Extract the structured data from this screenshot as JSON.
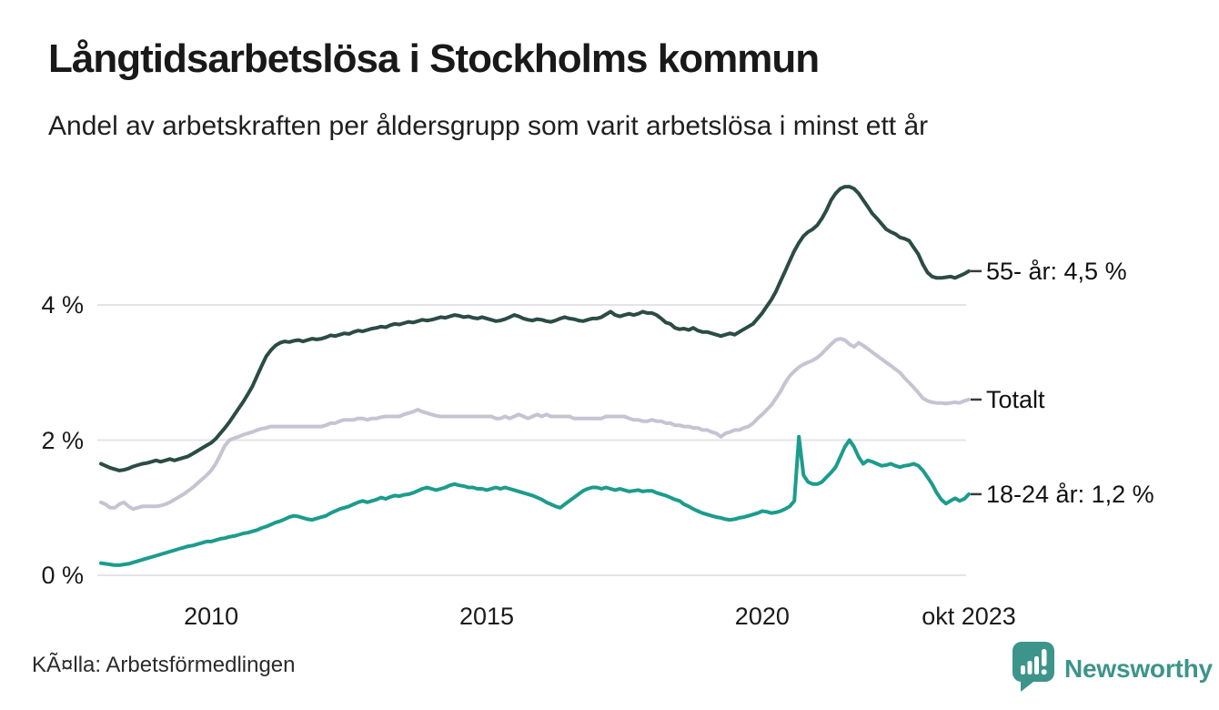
{
  "header": {
    "title": "Långtidsarbetslösa i Stockholms kommun",
    "subtitle": "Andel av arbetskraften per åldersgrupp som varit arbetslösa i minst ett år"
  },
  "footer": {
    "source": "KÃ¤lla: Arbetsförmedlingen",
    "brand": "Newsworthy",
    "brand_color": "#3d948b"
  },
  "chart_data": {
    "type": "line",
    "title": "Långtidsarbetslösa i Stockholms kommun",
    "subtitle": "Andel av arbetskraften per åldersgrupp som varit arbetslösa i minst ett år",
    "unit": "%",
    "frequency": "monthly",
    "period_start": "jan 2008",
    "period_end": "okt 2023",
    "grid": true,
    "legend_position": "right-end-labels",
    "x_axis": {
      "start_year": 2008.0,
      "end_year": 2023.75,
      "ticks": [
        {
          "label": "2010",
          "t": 2010.0
        },
        {
          "label": "2015",
          "t": 2015.0
        },
        {
          "label": "2020",
          "t": 2020.0
        },
        {
          "label": "okt 2023",
          "t": 2023.75
        }
      ]
    },
    "y_axis": {
      "ylim": [
        0,
        6
      ],
      "ticks": [
        {
          "label": "4 %",
          "value": 4
        },
        {
          "label": "2 %",
          "value": 2
        },
        {
          "label": "0 %",
          "value": 0
        }
      ]
    },
    "series": [
      {
        "name": "55- år",
        "end_label": "55- år: 4,5 %",
        "end_value": "4,5 %",
        "color": "#2b4c44",
        "values": [
          1.65,
          1.62,
          1.59,
          1.57,
          1.55,
          1.56,
          1.58,
          1.61,
          1.63,
          1.65,
          1.66,
          1.68,
          1.7,
          1.68,
          1.7,
          1.72,
          1.7,
          1.72,
          1.74,
          1.76,
          1.8,
          1.84,
          1.88,
          1.92,
          1.96,
          2.02,
          2.1,
          2.18,
          2.27,
          2.37,
          2.47,
          2.57,
          2.68,
          2.8,
          2.95,
          3.1,
          3.24,
          3.33,
          3.4,
          3.44,
          3.46,
          3.45,
          3.47,
          3.48,
          3.46,
          3.48,
          3.5,
          3.49,
          3.5,
          3.52,
          3.55,
          3.54,
          3.56,
          3.58,
          3.57,
          3.6,
          3.62,
          3.61,
          3.63,
          3.65,
          3.66,
          3.68,
          3.67,
          3.7,
          3.72,
          3.71,
          3.73,
          3.75,
          3.74,
          3.76,
          3.78,
          3.77,
          3.78,
          3.8,
          3.82,
          3.81,
          3.83,
          3.85,
          3.84,
          3.82,
          3.83,
          3.81,
          3.8,
          3.82,
          3.8,
          3.78,
          3.76,
          3.77,
          3.79,
          3.82,
          3.85,
          3.83,
          3.8,
          3.78,
          3.77,
          3.79,
          3.78,
          3.76,
          3.75,
          3.77,
          3.8,
          3.82,
          3.8,
          3.79,
          3.77,
          3.76,
          3.78,
          3.8,
          3.8,
          3.82,
          3.86,
          3.9,
          3.85,
          3.83,
          3.85,
          3.87,
          3.85,
          3.87,
          3.9,
          3.88,
          3.88,
          3.85,
          3.8,
          3.74,
          3.72,
          3.66,
          3.64,
          3.65,
          3.63,
          3.66,
          3.62,
          3.6,
          3.6,
          3.58,
          3.56,
          3.54,
          3.56,
          3.58,
          3.56,
          3.6,
          3.64,
          3.68,
          3.72,
          3.8,
          3.88,
          3.98,
          4.08,
          4.2,
          4.35,
          4.5,
          4.65,
          4.8,
          4.92,
          5.02,
          5.08,
          5.12,
          5.18,
          5.28,
          5.4,
          5.55,
          5.65,
          5.72,
          5.75,
          5.75,
          5.72,
          5.65,
          5.55,
          5.45,
          5.35,
          5.28,
          5.2,
          5.12,
          5.08,
          5.05,
          5.0,
          4.98,
          4.95,
          4.85,
          4.75,
          4.6,
          4.48,
          4.42,
          4.4,
          4.4,
          4.41,
          4.42,
          4.4,
          4.43,
          4.46,
          4.5
        ]
      },
      {
        "name": "Totalt",
        "end_label": "Totalt",
        "end_value": "2,6 %",
        "color": "#c6c3d2",
        "values": [
          1.08,
          1.05,
          1.0,
          1.0,
          1.05,
          1.08,
          1.02,
          0.98,
          1.0,
          1.02,
          1.02,
          1.02,
          1.02,
          1.03,
          1.05,
          1.08,
          1.12,
          1.16,
          1.2,
          1.25,
          1.3,
          1.36,
          1.42,
          1.48,
          1.55,
          1.65,
          1.78,
          1.92,
          2.0,
          2.03,
          2.05,
          2.08,
          2.1,
          2.12,
          2.15,
          2.17,
          2.18,
          2.2,
          2.2,
          2.2,
          2.2,
          2.2,
          2.2,
          2.2,
          2.2,
          2.2,
          2.2,
          2.2,
          2.2,
          2.22,
          2.25,
          2.25,
          2.28,
          2.3,
          2.3,
          2.3,
          2.32,
          2.32,
          2.3,
          2.32,
          2.32,
          2.34,
          2.35,
          2.35,
          2.35,
          2.35,
          2.38,
          2.4,
          2.42,
          2.45,
          2.42,
          2.4,
          2.38,
          2.36,
          2.35,
          2.35,
          2.35,
          2.35,
          2.35,
          2.35,
          2.35,
          2.35,
          2.35,
          2.35,
          2.35,
          2.35,
          2.32,
          2.32,
          2.35,
          2.32,
          2.35,
          2.38,
          2.35,
          2.32,
          2.35,
          2.38,
          2.35,
          2.38,
          2.35,
          2.35,
          2.35,
          2.35,
          2.35,
          2.32,
          2.32,
          2.32,
          2.32,
          2.32,
          2.32,
          2.32,
          2.35,
          2.35,
          2.35,
          2.35,
          2.35,
          2.32,
          2.3,
          2.3,
          2.28,
          2.28,
          2.3,
          2.28,
          2.28,
          2.25,
          2.25,
          2.22,
          2.22,
          2.2,
          2.2,
          2.18,
          2.18,
          2.15,
          2.15,
          2.12,
          2.1,
          2.05,
          2.1,
          2.12,
          2.15,
          2.15,
          2.18,
          2.2,
          2.25,
          2.32,
          2.38,
          2.45,
          2.52,
          2.62,
          2.72,
          2.85,
          2.95,
          3.02,
          3.08,
          3.12,
          3.15,
          3.18,
          3.22,
          3.28,
          3.35,
          3.42,
          3.48,
          3.5,
          3.48,
          3.42,
          3.38,
          3.44,
          3.4,
          3.35,
          3.3,
          3.25,
          3.2,
          3.15,
          3.1,
          3.05,
          3.0,
          2.92,
          2.85,
          2.78,
          2.7,
          2.62,
          2.58,
          2.56,
          2.55,
          2.55,
          2.54,
          2.55,
          2.56,
          2.55,
          2.58,
          2.6
        ]
      },
      {
        "name": "18-24 år",
        "end_label": "18-24 år: 1,2 %",
        "end_value": "1,2 %",
        "color": "#1c9c8c",
        "values": [
          0.18,
          0.17,
          0.16,
          0.15,
          0.15,
          0.16,
          0.17,
          0.19,
          0.21,
          0.23,
          0.25,
          0.27,
          0.29,
          0.31,
          0.33,
          0.35,
          0.37,
          0.39,
          0.41,
          0.43,
          0.44,
          0.46,
          0.48,
          0.5,
          0.5,
          0.52,
          0.54,
          0.55,
          0.57,
          0.58,
          0.6,
          0.62,
          0.63,
          0.65,
          0.67,
          0.7,
          0.72,
          0.75,
          0.78,
          0.8,
          0.83,
          0.86,
          0.88,
          0.87,
          0.85,
          0.83,
          0.82,
          0.84,
          0.86,
          0.88,
          0.92,
          0.95,
          0.98,
          1.0,
          1.02,
          1.05,
          1.08,
          1.1,
          1.08,
          1.1,
          1.12,
          1.15,
          1.13,
          1.16,
          1.18,
          1.17,
          1.19,
          1.2,
          1.22,
          1.25,
          1.28,
          1.3,
          1.28,
          1.26,
          1.28,
          1.3,
          1.33,
          1.35,
          1.33,
          1.32,
          1.3,
          1.3,
          1.28,
          1.28,
          1.26,
          1.28,
          1.3,
          1.28,
          1.3,
          1.28,
          1.26,
          1.24,
          1.22,
          1.2,
          1.18,
          1.15,
          1.12,
          1.08,
          1.05,
          1.02,
          1.0,
          1.05,
          1.1,
          1.15,
          1.2,
          1.25,
          1.28,
          1.3,
          1.3,
          1.28,
          1.3,
          1.28,
          1.26,
          1.28,
          1.26,
          1.24,
          1.25,
          1.26,
          1.24,
          1.25,
          1.25,
          1.22,
          1.2,
          1.18,
          1.15,
          1.12,
          1.1,
          1.05,
          1.02,
          0.98,
          0.95,
          0.92,
          0.9,
          0.88,
          0.86,
          0.85,
          0.83,
          0.82,
          0.83,
          0.85,
          0.86,
          0.88,
          0.9,
          0.92,
          0.95,
          0.94,
          0.92,
          0.93,
          0.95,
          0.98,
          1.02,
          1.1,
          2.05,
          1.48,
          1.38,
          1.35,
          1.35,
          1.38,
          1.45,
          1.52,
          1.6,
          1.75,
          1.9,
          2.0,
          1.9,
          1.75,
          1.65,
          1.7,
          1.68,
          1.65,
          1.62,
          1.63,
          1.65,
          1.62,
          1.6,
          1.62,
          1.63,
          1.65,
          1.62,
          1.55,
          1.45,
          1.35,
          1.22,
          1.12,
          1.06,
          1.1,
          1.14,
          1.1,
          1.13,
          1.2
        ]
      }
    ],
    "style": {
      "grid_color": "#e4e4e8",
      "tick_dash_color": "#3a3a3a",
      "background": "#ffffff"
    }
  }
}
